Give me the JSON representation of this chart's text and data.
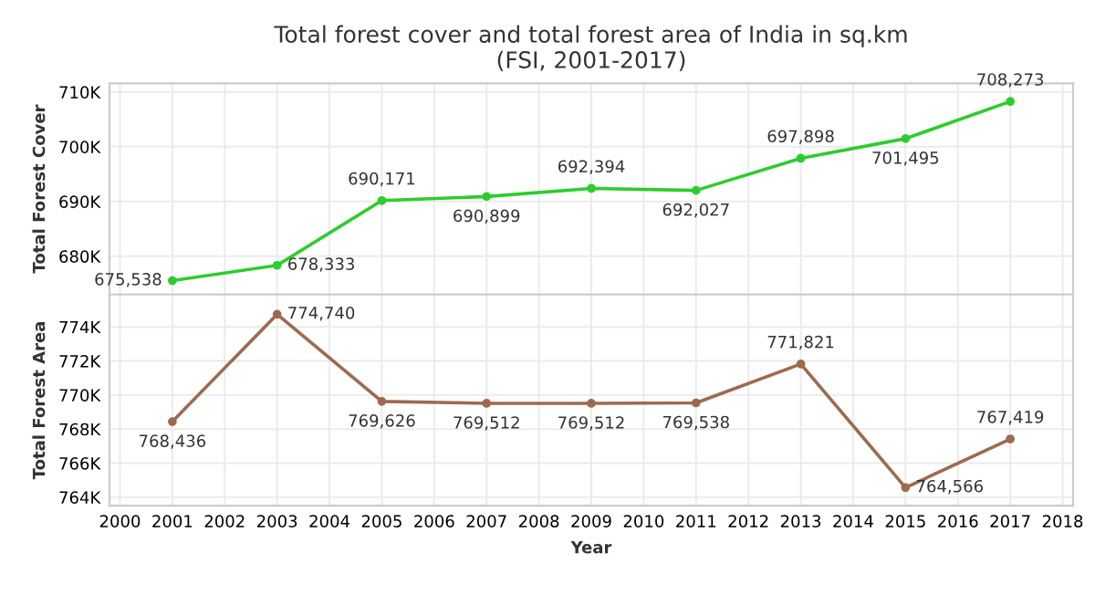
{
  "chart_data": [
    {
      "type": "line",
      "title": "Total forest cover and total forest area of India in sq.km\n(FSI, 2001-2017)",
      "ylabel": "Total Forest Cover",
      "x": [
        2001,
        2003,
        2005,
        2007,
        2009,
        2011,
        2013,
        2015,
        2017
      ],
      "series": [
        {
          "color": "#2ecc2e",
          "values": [
            675538,
            678333,
            690171,
            690899,
            692394,
            692027,
            697898,
            701495,
            708273
          ],
          "value_labels": [
            "675,538",
            "678,333",
            "690,171",
            "690,899",
            "692,394",
            "692,027",
            "697,898",
            "701,495",
            "708,273"
          ]
        }
      ],
      "xlim": [
        1999.8,
        2018.2
      ],
      "xticks": [
        2000,
        2001,
        2002,
        2003,
        2004,
        2005,
        2006,
        2007,
        2008,
        2009,
        2010,
        2011,
        2012,
        2013,
        2014,
        2015,
        2016,
        2017,
        2018
      ],
      "ylim": [
        673000,
        711600
      ],
      "yticks": [
        {
          "value": 680000,
          "label": "680K"
        },
        {
          "value": 690000,
          "label": "690K"
        },
        {
          "value": 700000,
          "label": "700K"
        },
        {
          "value": 710000,
          "label": "710K"
        }
      ],
      "grid": true,
      "marker": "circle",
      "tick_labels": "y"
    },
    {
      "type": "line",
      "xlabel": "Year",
      "ylabel": "Total Forest Area",
      "x": [
        2001,
        2003,
        2005,
        2007,
        2009,
        2011,
        2013,
        2015,
        2017
      ],
      "series": [
        {
          "color": "#9c6b4e",
          "values": [
            768436,
            774740,
            769626,
            769512,
            769512,
            769538,
            771821,
            764566,
            767419
          ],
          "value_labels": [
            "768,436",
            "774,740",
            "769,626",
            "769,512",
            "769,512",
            "769,538",
            "771,821",
            "764,566",
            "767,419"
          ]
        }
      ],
      "xlim": [
        1999.8,
        2018.2
      ],
      "xticks": [
        2000,
        2001,
        2002,
        2003,
        2004,
        2005,
        2006,
        2007,
        2008,
        2009,
        2010,
        2011,
        2012,
        2013,
        2014,
        2015,
        2016,
        2017,
        2018
      ],
      "ylim": [
        763500,
        775900
      ],
      "yticks": [
        {
          "value": 764000,
          "label": "764K"
        },
        {
          "value": 766000,
          "label": "766K"
        },
        {
          "value": 768000,
          "label": "768K"
        },
        {
          "value": 770000,
          "label": "770K"
        },
        {
          "value": 772000,
          "label": "772K"
        },
        {
          "value": 774000,
          "label": "774K"
        }
      ],
      "grid": true,
      "marker": "circle"
    }
  ]
}
